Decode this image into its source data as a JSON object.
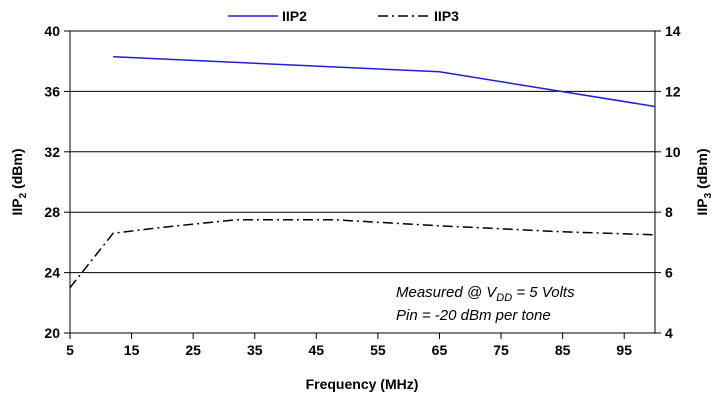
{
  "chart_data": {
    "type": "line",
    "title": "",
    "xlabel": "Frequency (MHz)",
    "ylabel_left": {
      "base": "IIP",
      "sub": "2",
      "rest": " (dBm)"
    },
    "ylabel_right": {
      "base": "IIP",
      "sub": "3",
      "rest": " (dBm)"
    },
    "xlim": [
      5,
      100
    ],
    "ylim_left": [
      20,
      40
    ],
    "ylim_right": [
      4,
      14
    ],
    "x_ticks": [
      5,
      15,
      25,
      35,
      45,
      55,
      65,
      75,
      85,
      95
    ],
    "y_left_ticks": [
      20,
      24,
      28,
      32,
      36,
      40
    ],
    "y_right_ticks": [
      4,
      6,
      8,
      10,
      12,
      14
    ],
    "grid": "horizontal",
    "legend_position": "top-center",
    "series": [
      {
        "name": "IIP2",
        "axis": "left",
        "color": "#1f1fd6",
        "style": "solid",
        "x": [
          12,
          65,
          100
        ],
        "y": [
          38.3,
          37.3,
          35.0
        ]
      },
      {
        "name": "IIP3",
        "axis": "right",
        "color": "#000000",
        "style": "dash-dot",
        "x": [
          5,
          12,
          20,
          32,
          48,
          65,
          85,
          100
        ],
        "y": [
          5.5,
          7.3,
          7.5,
          7.75,
          7.75,
          7.55,
          7.35,
          7.25
        ]
      }
    ],
    "annotations": [
      {
        "parts": [
          "Measured @ V",
          "DD",
          " =  5  Volts"
        ]
      },
      {
        "parts": [
          "Pin = -20 dBm per tone"
        ]
      }
    ]
  }
}
